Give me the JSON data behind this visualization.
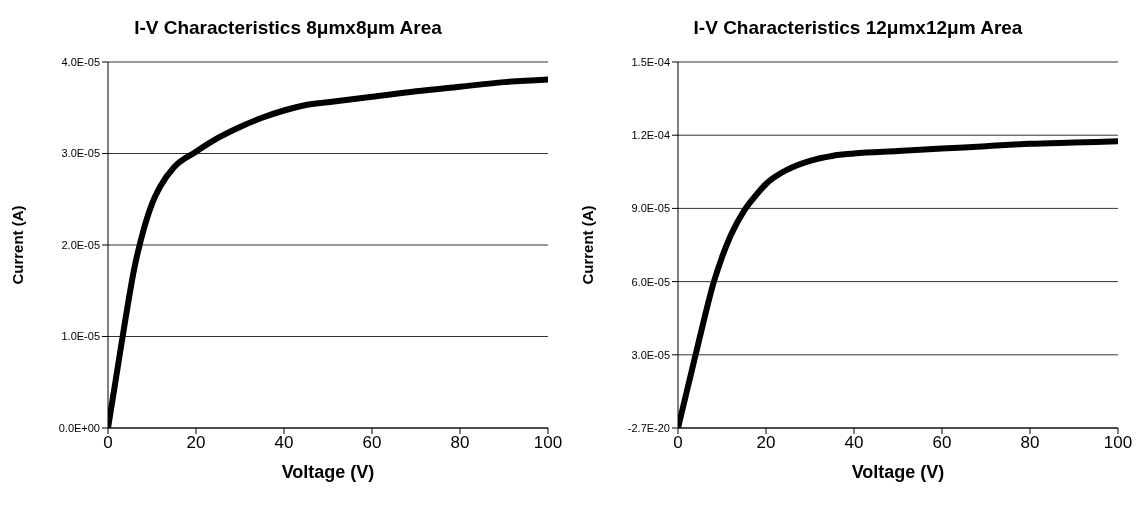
{
  "chart_data": [
    {
      "type": "line",
      "title": "I-V Characteristics 8μmx8μm Area",
      "xlabel": "Voltage (V)",
      "ylabel": "Current (A)",
      "x": [
        0,
        2,
        4,
        6,
        8,
        10,
        12,
        15,
        20,
        25,
        30,
        35,
        40,
        45,
        50,
        60,
        70,
        80,
        90,
        100
      ],
      "series": [
        {
          "color": "#000000",
          "values": [
            0,
            6e-06,
            1.2e-05,
            1.75e-05,
            2.15e-05,
            2.45e-05,
            2.65e-05,
            2.85e-05,
            3.02e-05,
            3.17e-05,
            3.29e-05,
            3.39e-05,
            3.47e-05,
            3.53e-05,
            3.56e-05,
            3.62e-05,
            3.68e-05,
            3.73e-05,
            3.78e-05,
            3.81e-05
          ]
        }
      ],
      "xlim": [
        0,
        100
      ],
      "xticks": [
        0,
        20,
        40,
        60,
        80,
        100
      ],
      "ylim": [
        0,
        4e-05
      ],
      "yticks": [
        {
          "value": 0,
          "label": "0.0E+00"
        },
        {
          "value": 1e-05,
          "label": "1.0E-05"
        },
        {
          "value": 2e-05,
          "label": "2.0E-05"
        },
        {
          "value": 3e-05,
          "label": "3.0E-05"
        },
        {
          "value": 4e-05,
          "label": "4.0E-05"
        }
      ],
      "grid": "y",
      "legend": false
    },
    {
      "type": "line",
      "title": "I-V Characteristics 12μmx12μm Area",
      "xlabel": "Voltage (V)",
      "ylabel": "Current (A)",
      "x": [
        0,
        2,
        4,
        6,
        8,
        10,
        12,
        15,
        18,
        20,
        25,
        30,
        35,
        40,
        50,
        60,
        70,
        80,
        90,
        100
      ],
      "series": [
        {
          "color": "#000000",
          "values": [
            0,
            1.5e-05,
            3e-05,
            4.5e-05,
            5.9e-05,
            7e-05,
            7.9e-05,
            8.9e-05,
            9.6e-05,
            0.0001,
            0.000106,
            0.0001095,
            0.0001115,
            0.0001125,
            0.0001135,
            0.0001145,
            0.0001155,
            0.0001165,
            0.000117,
            0.0001175
          ]
        }
      ],
      "xlim": [
        0,
        100
      ],
      "xticks": [
        0,
        20,
        40,
        60,
        80,
        100
      ],
      "ylim": [
        -2.7e-20,
        0.00015
      ],
      "yticks": [
        {
          "value": -2.7e-20,
          "label": "-2.7E-20"
        },
        {
          "value": 3e-05,
          "label": "3.0E-05"
        },
        {
          "value": 6e-05,
          "label": "6.0E-05"
        },
        {
          "value": 9e-05,
          "label": "9.0E-05"
        },
        {
          "value": 0.00012,
          "label": "1.2E-04"
        },
        {
          "value": 0.00015,
          "label": "1.5E-04"
        }
      ],
      "grid": "y",
      "legend": false
    }
  ]
}
